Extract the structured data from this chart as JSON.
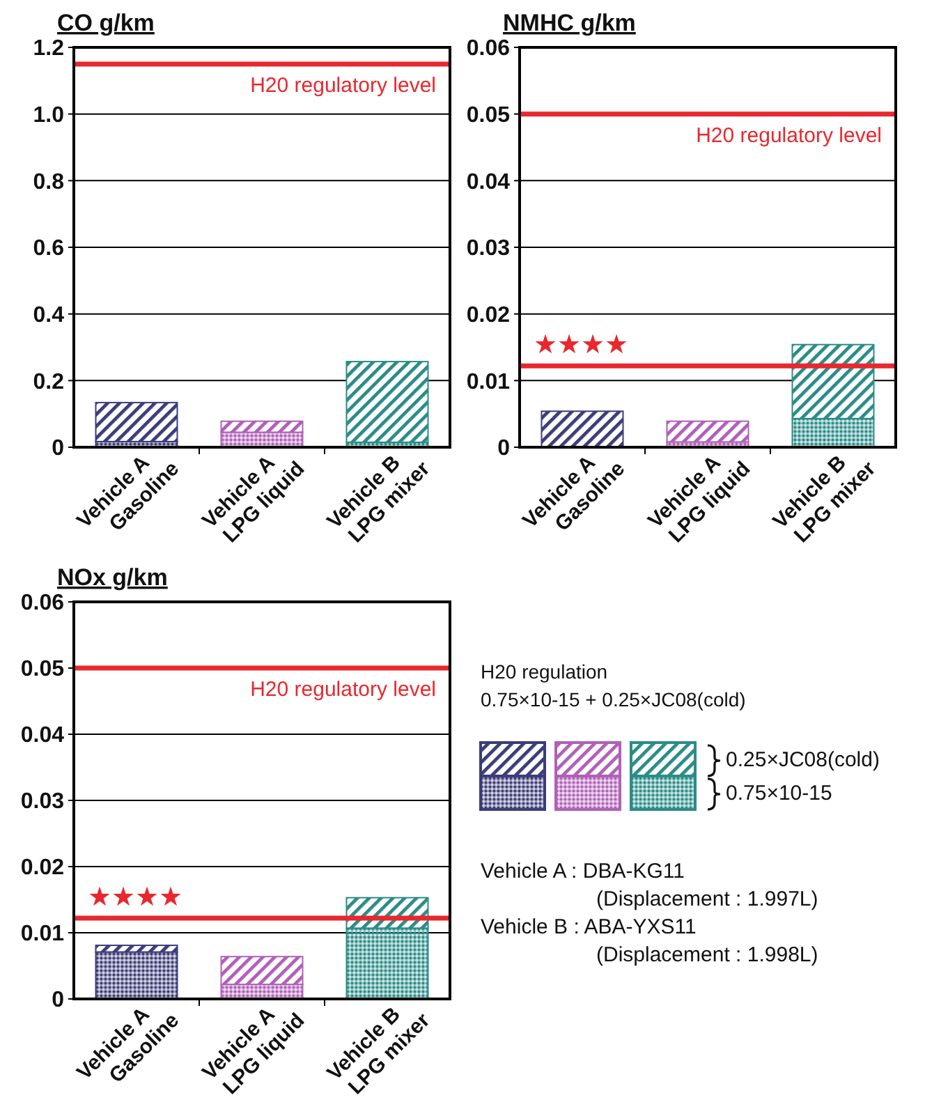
{
  "chart_data": [
    {
      "type": "bar",
      "stacked": true,
      "title": "CO g/km",
      "categories": [
        "Vehicle A\nGasoline",
        "Vehicle A\nLPG liquid",
        "Vehicle B\nLPG mixer"
      ],
      "ylim": [
        0,
        1.2
      ],
      "yticks": [
        0,
        0.2,
        0.4,
        0.6,
        0.8,
        {
          "value": 1,
          "label": "1.0"
        },
        1.2
      ],
      "grid": "y",
      "legend": false,
      "series": [
        {
          "colors": [
            "#3c3c78",
            "#b060b8",
            "#2a8c88"
          ],
          "values": [
            0.017,
            0.045,
            0.015
          ]
        },
        {
          "colors": [
            "#3c3c78",
            "#b060b8",
            "#2a8c88"
          ],
          "values": [
            0.117,
            0.033,
            0.242
          ]
        }
      ],
      "ref_lines": [
        {
          "axis": "y",
          "value": 1.15,
          "label": "H20 regulatory level",
          "color": "#e8282e"
        }
      ]
    },
    {
      "type": "bar",
      "stacked": true,
      "title": "NMHC g/km",
      "categories": [
        "Vehicle A\nGasoline",
        "Vehicle A\nLPG liquid",
        "Vehicle B\nLPG mixer"
      ],
      "ylim": [
        0,
        0.06
      ],
      "yticks": [
        0,
        0.01,
        0.02,
        0.03,
        0.04,
        0.05,
        0.06
      ],
      "grid": "y",
      "legend": false,
      "series": [
        {
          "colors": [
            "#3c3c78",
            "#b060b8",
            "#2a8c88"
          ],
          "values": [
            null,
            0.0008,
            0.0043
          ]
        },
        {
          "colors": [
            "#3c3c78",
            "#b060b8",
            "#2a8c88"
          ],
          "values": [
            0.0054,
            0.0031,
            0.0111
          ]
        }
      ],
      "ref_lines": [
        {
          "axis": "y",
          "value": 0.05,
          "label": "H20 regulatory level",
          "color": "#e8282e"
        },
        {
          "axis": "y",
          "value": 0.0122,
          "label": "★★★★",
          "color": "#e8282e"
        }
      ]
    },
    {
      "type": "bar",
      "stacked": true,
      "title": "NOx g/km",
      "categories": [
        "Vehicle A\nGasoline",
        "Vehicle A\nLPG liquid",
        "Vehicle B\nLPG mixer"
      ],
      "ylim": [
        0,
        0.06
      ],
      "yticks": [
        0,
        0.01,
        0.02,
        0.03,
        0.04,
        0.05,
        0.06
      ],
      "grid": "y",
      "legend": "right",
      "legend_title": "H20 regulation\n0.75×10-15 + 0.25×JC08(cold)",
      "series": [
        {
          "name": "0.75×10-15",
          "colors": [
            "#3c3c78",
            "#b060b8",
            "#2a8c88"
          ],
          "values": [
            0.0071,
            0.0022,
            0.0107
          ]
        },
        {
          "name": "0.25×JC08(cold)",
          "colors": [
            "#3c3c78",
            "#b060b8",
            "#2a8c88"
          ],
          "values": [
            0.001,
            0.0042,
            0.0046
          ]
        }
      ],
      "ref_lines": [
        {
          "axis": "y",
          "value": 0.05,
          "label": "H20 regulatory level",
          "color": "#e8282e"
        },
        {
          "axis": "y",
          "value": 0.0122,
          "label": "★★★★",
          "color": "#e8282e"
        }
      ],
      "annotations": [
        "Vehicle A : DBA-KG11",
        "(Displacement : 1.997L)",
        "Vehicle B : ABA-YXS11",
        "(Displacement : 1.998L)"
      ]
    }
  ]
}
